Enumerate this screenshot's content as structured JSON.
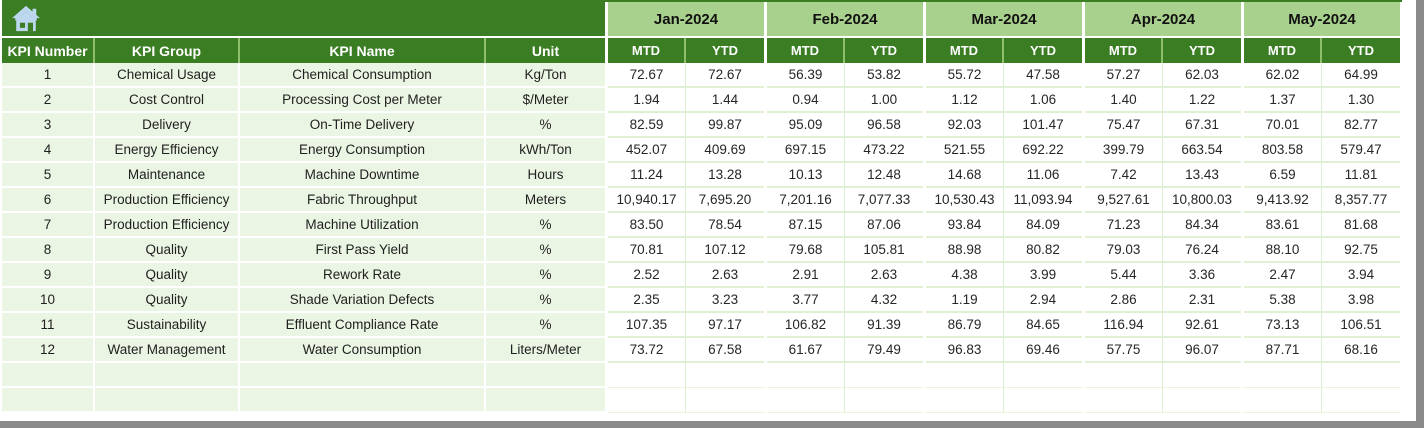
{
  "header": {
    "columns": [
      "KPI Number",
      "KPI Group",
      "KPI Name",
      "Unit"
    ],
    "months": [
      "Jan-2024",
      "Feb-2024",
      "Mar-2024",
      "Apr-2024",
      "May-2024"
    ],
    "period_types": [
      "MTD",
      "YTD"
    ]
  },
  "icons": {
    "home": "home-house-icon"
  },
  "rows": [
    {
      "kpi_number": "1",
      "kpi_group": "Chemical Usage",
      "kpi_name": "Chemical Consumption",
      "unit": "Kg/Ton",
      "values": [
        "72.67",
        "72.67",
        "56.39",
        "53.82",
        "55.72",
        "47.58",
        "57.27",
        "62.03",
        "62.02",
        "64.99"
      ]
    },
    {
      "kpi_number": "2",
      "kpi_group": "Cost Control",
      "kpi_name": "Processing Cost per Meter",
      "unit": "$/Meter",
      "values": [
        "1.94",
        "1.44",
        "0.94",
        "1.00",
        "1.12",
        "1.06",
        "1.40",
        "1.22",
        "1.37",
        "1.30"
      ]
    },
    {
      "kpi_number": "3",
      "kpi_group": "Delivery",
      "kpi_name": "On-Time Delivery",
      "unit": "%",
      "values": [
        "82.59",
        "99.87",
        "95.09",
        "96.58",
        "92.03",
        "101.47",
        "75.47",
        "67.31",
        "70.01",
        "82.77"
      ]
    },
    {
      "kpi_number": "4",
      "kpi_group": "Energy Efficiency",
      "kpi_name": "Energy Consumption",
      "unit": "kWh/Ton",
      "values": [
        "452.07",
        "409.69",
        "697.15",
        "473.22",
        "521.55",
        "692.22",
        "399.79",
        "663.54",
        "803.58",
        "579.47"
      ]
    },
    {
      "kpi_number": "5",
      "kpi_group": "Maintenance",
      "kpi_name": "Machine Downtime",
      "unit": "Hours",
      "values": [
        "11.24",
        "13.28",
        "10.13",
        "12.48",
        "14.68",
        "11.06",
        "7.42",
        "13.43",
        "6.59",
        "11.81"
      ]
    },
    {
      "kpi_number": "6",
      "kpi_group": "Production Efficiency",
      "kpi_name": "Fabric Throughput",
      "unit": "Meters",
      "values": [
        "10,940.17",
        "7,695.20",
        "7,201.16",
        "7,077.33",
        "10,530.43",
        "11,093.94",
        "9,527.61",
        "10,800.03",
        "9,413.92",
        "8,357.77"
      ]
    },
    {
      "kpi_number": "7",
      "kpi_group": "Production Efficiency",
      "kpi_name": "Machine Utilization",
      "unit": "%",
      "values": [
        "83.50",
        "78.54",
        "87.15",
        "87.06",
        "93.84",
        "84.09",
        "71.23",
        "84.34",
        "83.61",
        "81.68"
      ]
    },
    {
      "kpi_number": "8",
      "kpi_group": "Quality",
      "kpi_name": "First Pass Yield",
      "unit": "%",
      "values": [
        "70.81",
        "107.12",
        "79.68",
        "105.81",
        "88.98",
        "80.82",
        "79.03",
        "76.24",
        "88.10",
        "92.75"
      ]
    },
    {
      "kpi_number": "9",
      "kpi_group": "Quality",
      "kpi_name": "Rework Rate",
      "unit": "%",
      "values": [
        "2.52",
        "2.63",
        "2.91",
        "2.63",
        "4.38",
        "3.99",
        "5.44",
        "3.36",
        "2.47",
        "3.94"
      ]
    },
    {
      "kpi_number": "10",
      "kpi_group": "Quality",
      "kpi_name": "Shade Variation Defects",
      "unit": "%",
      "values": [
        "2.35",
        "3.23",
        "3.77",
        "4.32",
        "1.19",
        "2.94",
        "2.86",
        "2.31",
        "5.38",
        "3.98"
      ]
    },
    {
      "kpi_number": "11",
      "kpi_group": "Sustainability",
      "kpi_name": "Effluent Compliance Rate",
      "unit": "%",
      "values": [
        "107.35",
        "97.17",
        "106.82",
        "91.39",
        "86.79",
        "84.65",
        "116.94",
        "92.61",
        "73.13",
        "106.51"
      ]
    },
    {
      "kpi_number": "12",
      "kpi_group": "Water Management",
      "kpi_name": "Water Consumption",
      "unit": "Liters/Meter",
      "values": [
        "73.72",
        "67.58",
        "61.67",
        "79.49",
        "96.83",
        "69.46",
        "57.75",
        "96.07",
        "87.71",
        "68.16"
      ]
    }
  ],
  "empty_row_count": 2,
  "colors": {
    "header_dark_green": "#3a7d22",
    "month_header_green": "#a9d18e",
    "row_band_green": "#ebf5e3",
    "gridline_green": "#dcefd0",
    "home_icon_blue": "#bdd7ee",
    "window_border_gray": "#8a8a8a"
  }
}
